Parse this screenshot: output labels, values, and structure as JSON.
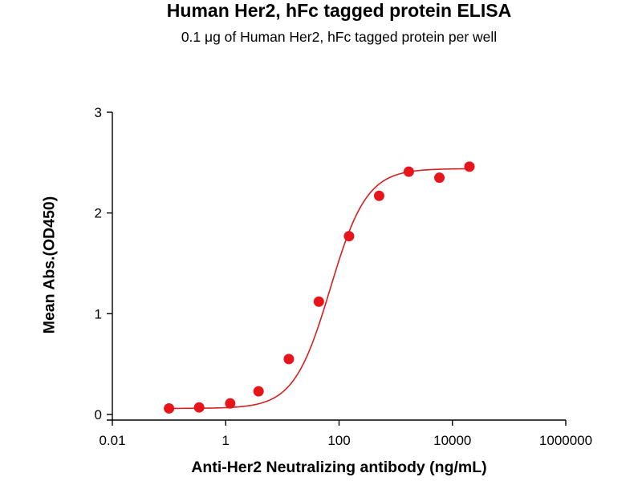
{
  "chart_data": {
    "type": "scatter",
    "title": "Human Her2, hFc tagged protein ELISA",
    "subtitle": "0.1 μg of Human Her2, hFc tagged protein per well",
    "xlabel": "Anti-Her2 Neutralizing antibody (ng/mL)",
    "ylabel": "Mean Abs.(OD450)",
    "xscale": "log",
    "xlim": [
      0.01,
      1000000
    ],
    "ylim": [
      0,
      3
    ],
    "x_ticks": [
      0.01,
      1,
      100,
      10000,
      1000000
    ],
    "x_tick_labels": [
      "0.01",
      "1",
      "100",
      "10000",
      "1000000"
    ],
    "y_ticks": [
      0,
      1,
      2,
      3
    ],
    "y_tick_labels": [
      "0",
      "1",
      "2",
      "3"
    ],
    "grid": false,
    "series": [
      {
        "marker_color": "#e8141b",
        "line_color": "#d42020",
        "x": [
          0.1,
          0.34,
          1.2,
          3.8,
          13,
          44,
          150,
          510,
          1700,
          5900,
          20000
        ],
        "y": [
          0.06,
          0.07,
          0.11,
          0.23,
          0.55,
          1.12,
          1.77,
          2.17,
          2.41,
          2.35,
          2.46
        ]
      }
    ],
    "fit_curve": {
      "bottom": 0.06,
      "top": 2.44,
      "ec50": 70,
      "hill": 1.35,
      "x_range": [
        0.1,
        20000
      ]
    }
  }
}
